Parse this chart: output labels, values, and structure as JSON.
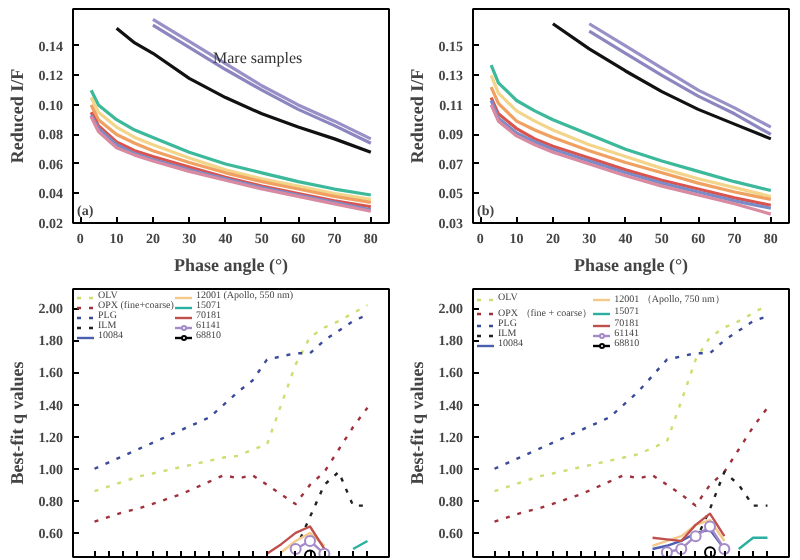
{
  "chart_data": [
    {
      "type": "line",
      "xlabel": "Phase angle (°)",
      "ylabel": "Reduced I/F",
      "x": [
        3,
        5,
        10,
        15,
        20,
        30,
        40,
        50,
        60,
        70,
        80
      ],
      "xlim": [
        -2,
        85
      ],
      "ylim": [
        0.02,
        0.165
      ],
      "xticks": [
        0,
        10,
        20,
        30,
        40,
        50,
        60,
        70,
        80
      ],
      "yticks": [
        {
          "value": 0.02,
          "label": "0.02"
        },
        {
          "value": 0.04,
          "label": "0.04"
        },
        {
          "value": 0.06,
          "label": "0.06"
        },
        {
          "value": 0.08,
          "label": "0.08"
        },
        {
          "value": 0.1,
          "label": "0.10"
        },
        {
          "value": 0.12,
          "label": "0.12"
        },
        {
          "value": 0.14,
          "label": "0.14"
        }
      ],
      "grid": false,
      "legend": false,
      "annotations": [
        "(a)",
        "Mare samples"
      ],
      "series": [
        {
          "color": "#9a90c8",
          "values": [
            null,
            null,
            null,
            null,
            0.158,
            0.143,
            0.128,
            0.113,
            0.1,
            0.089,
            0.077
          ]
        },
        {
          "color": "#8c86c0",
          "values": [
            null,
            null,
            null,
            null,
            0.154,
            0.139,
            0.124,
            0.11,
            0.097,
            0.086,
            0.074
          ]
        },
        {
          "color": "#111111",
          "values": [
            null,
            null,
            0.152,
            0.142,
            0.135,
            0.118,
            0.105,
            0.094,
            0.085,
            0.077,
            0.068
          ]
        },
        {
          "color": "#3cb89a",
          "values": [
            0.11,
            0.1,
            0.09,
            0.083,
            0.078,
            0.068,
            0.06,
            0.054,
            0.048,
            0.043,
            0.039
          ]
        },
        {
          "color": "#f2d58a",
          "values": [
            0.105,
            0.095,
            0.085,
            0.078,
            0.073,
            0.064,
            0.056,
            0.05,
            0.045,
            0.04,
            0.036
          ]
        },
        {
          "color": "#f0a060",
          "values": [
            0.1,
            0.09,
            0.08,
            0.074,
            0.069,
            0.061,
            0.054,
            0.048,
            0.043,
            0.038,
            0.034
          ]
        },
        {
          "color": "#d9534f",
          "values": [
            0.095,
            0.086,
            0.075,
            0.069,
            0.065,
            0.058,
            0.051,
            0.045,
            0.04,
            0.035,
            0.031
          ]
        },
        {
          "color": "#7a8cc8",
          "values": [
            0.093,
            0.084,
            0.073,
            0.067,
            0.063,
            0.056,
            0.05,
            0.044,
            0.039,
            0.034,
            0.029
          ]
        },
        {
          "color": "#d98aa0",
          "values": [
            0.092,
            0.082,
            0.071,
            0.066,
            0.062,
            0.055,
            0.049,
            0.043,
            0.038,
            0.033,
            0.028
          ]
        }
      ]
    },
    {
      "type": "line",
      "xlabel": "Phase angle (°)",
      "ylabel": "Reduced I/F",
      "x": [
        3,
        5,
        10,
        15,
        20,
        30,
        40,
        50,
        60,
        70,
        80
      ],
      "xlim": [
        -2,
        85
      ],
      "ylim": [
        0.03,
        0.175
      ],
      "xticks": [
        0,
        10,
        20,
        30,
        40,
        50,
        60,
        70,
        80
      ],
      "yticks": [
        0.03,
        0.05,
        0.07,
        0.09,
        0.11,
        0.13,
        0.15
      ],
      "grid": false,
      "legend": false,
      "annotations": [
        "(b)"
      ],
      "series": [
        {
          "color": "#9a90c8",
          "values": [
            null,
            null,
            null,
            null,
            null,
            0.165,
            0.15,
            0.135,
            0.12,
            0.108,
            0.095
          ]
        },
        {
          "color": "#8c86c0",
          "values": [
            null,
            null,
            null,
            null,
            null,
            0.16,
            0.145,
            0.13,
            0.116,
            0.104,
            0.09
          ]
        },
        {
          "color": "#111111",
          "values": [
            null,
            null,
            null,
            null,
            0.165,
            0.148,
            0.133,
            0.119,
            0.107,
            0.097,
            0.087
          ]
        },
        {
          "color": "#3cb89a",
          "values": [
            0.137,
            0.125,
            0.113,
            0.106,
            0.1,
            0.09,
            0.08,
            0.072,
            0.065,
            0.058,
            0.052
          ]
        },
        {
          "color": "#f2d58a",
          "values": [
            0.13,
            0.118,
            0.106,
            0.099,
            0.093,
            0.083,
            0.075,
            0.067,
            0.06,
            0.054,
            0.048
          ]
        },
        {
          "color": "#f0a060",
          "values": [
            0.122,
            0.111,
            0.099,
            0.093,
            0.088,
            0.079,
            0.071,
            0.064,
            0.057,
            0.051,
            0.046
          ]
        },
        {
          "color": "#d9534f",
          "values": [
            0.115,
            0.104,
            0.094,
            0.087,
            0.082,
            0.074,
            0.066,
            0.059,
            0.053,
            0.047,
            0.042
          ]
        },
        {
          "color": "#7a8cc8",
          "values": [
            0.113,
            0.101,
            0.091,
            0.085,
            0.08,
            0.072,
            0.064,
            0.057,
            0.051,
            0.045,
            0.04
          ]
        },
        {
          "color": "#d98aa0",
          "values": [
            0.11,
            0.099,
            0.089,
            0.083,
            0.078,
            0.07,
            0.062,
            0.055,
            0.049,
            0.043,
            0.036
          ]
        }
      ]
    },
    {
      "type": "line",
      "ylabel": "Best-fit q values",
      "categories": [
        null,
        null,
        null,
        null,
        null,
        null,
        null,
        null,
        null,
        null,
        null,
        null,
        null,
        null,
        null,
        null,
        null,
        null,
        null,
        null
      ],
      "ylim": [
        0.45,
        2.12
      ],
      "yticks": [
        {
          "value": 0.6,
          "label": "0.60"
        },
        {
          "value": 0.8,
          "label": "0.80"
        },
        {
          "value": 1.0,
          "label": "1.00"
        },
        {
          "value": 1.2,
          "label": "1.20"
        },
        {
          "value": 1.4,
          "label": "1.40"
        },
        {
          "value": 1.6,
          "label": "1.60"
        },
        {
          "value": 1.8,
          "label": "1.80"
        },
        {
          "value": 2.0,
          "label": "2.00"
        }
      ],
      "tick_labels": "y",
      "grid": false,
      "legend": "top left",
      "series": [
        {
          "name": "OLV",
          "color": "#cfdc70",
          "line_style": "dotted",
          "values": [
            0.86,
            0.89,
            0.92,
            0.95,
            0.97,
            0.99,
            1.01,
            1.03,
            1.05,
            1.07,
            1.08,
            1.12,
            1.15,
            1.4,
            1.65,
            1.82,
            1.88,
            1.92,
            1.97,
            2.02
          ]
        },
        {
          "name": "OPX (fine+coarse)",
          "color": "#a0303a",
          "line_style": "dotted",
          "values": [
            0.67,
            0.7,
            0.73,
            0.75,
            0.78,
            0.81,
            0.84,
            0.88,
            0.92,
            0.96,
            0.94,
            0.96,
            0.9,
            0.84,
            0.78,
            0.9,
            0.98,
            1.12,
            1.26,
            1.38
          ]
        },
        {
          "name": "PLG",
          "color": "#3a4a9a",
          "line_style": "dotted",
          "values": [
            1.0,
            1.04,
            1.08,
            1.12,
            1.16,
            1.2,
            1.24,
            1.28,
            1.32,
            1.4,
            1.48,
            1.55,
            1.68,
            1.7,
            1.72,
            1.72,
            1.8,
            1.86,
            1.92,
            1.96
          ]
        },
        {
          "name": "ILM",
          "color": "#222222",
          "line_style": "dotted",
          "values": [
            null,
            null,
            null,
            null,
            null,
            null,
            null,
            null,
            null,
            null,
            null,
            null,
            null,
            null,
            0.5,
            0.7,
            0.9,
            0.98,
            0.77,
            0.77
          ]
        },
        {
          "name": "10084",
          "color": "#4a5fb0",
          "line_style": "solid",
          "values": [
            null,
            null,
            null,
            null,
            null,
            null,
            null,
            null,
            null,
            null,
            null,
            null,
            null,
            null,
            null,
            null,
            null,
            null,
            null,
            null
          ]
        },
        {
          "name": "12001 (Apollo, 550 nm)",
          "color": "#f5c98a",
          "line_style": "solid",
          "values": [
            null,
            null,
            null,
            null,
            null,
            null,
            null,
            null,
            null,
            null,
            null,
            null,
            null,
            0.48,
            0.55,
            0.6,
            0.52,
            null,
            null,
            null
          ]
        },
        {
          "name": "15071",
          "color": "#2ab0a0",
          "line_style": "solid",
          "values": [
            null,
            null,
            null,
            null,
            null,
            null,
            null,
            null,
            null,
            null,
            null,
            null,
            null,
            null,
            null,
            null,
            null,
            null,
            0.5,
            0.55
          ]
        },
        {
          "name": "70181",
          "color": "#c0504d",
          "line_style": "solid",
          "values": [
            null,
            null,
            null,
            null,
            null,
            null,
            null,
            null,
            null,
            null,
            null,
            null,
            0.47,
            0.53,
            0.6,
            0.64,
            0.5,
            null,
            null,
            null
          ]
        },
        {
          "name": "61141",
          "color": "#a58ac8",
          "line_style": "solid",
          "marker": "circle",
          "values": [
            null,
            null,
            null,
            null,
            null,
            null,
            null,
            null,
            null,
            null,
            null,
            null,
            null,
            null,
            0.5,
            0.55,
            0.47,
            null,
            null,
            null
          ]
        },
        {
          "name": "68810",
          "color": "#000000",
          "line_style": "solid",
          "marker": "circle",
          "values": [
            null,
            null,
            null,
            null,
            null,
            null,
            null,
            null,
            null,
            null,
            null,
            null,
            null,
            null,
            null,
            0.46,
            null,
            null,
            null,
            null
          ]
        }
      ]
    },
    {
      "type": "line",
      "ylabel": "Best-fit q values",
      "categories": [
        null,
        null,
        null,
        null,
        null,
        null,
        null,
        null,
        null,
        null,
        null,
        null,
        null,
        null,
        null,
        null,
        null,
        null,
        null,
        null
      ],
      "ylim": [
        0.45,
        2.12
      ],
      "yticks": [
        {
          "value": 0.6,
          "label": "0.60"
        },
        {
          "value": 0.8,
          "label": "0.80"
        },
        {
          "value": 1.0,
          "label": "1.00"
        },
        {
          "value": 1.2,
          "label": "1.20"
        },
        {
          "value": 1.4,
          "label": "1.40"
        },
        {
          "value": 1.6,
          "label": "1.60"
        },
        {
          "value": 1.8,
          "label": "1.80"
        },
        {
          "value": 2.0,
          "label": "2.00"
        }
      ],
      "tick_labels": "y",
      "grid": false,
      "legend": "top left",
      "series": [
        {
          "name": "OLV",
          "color": "#cfdc70",
          "line_style": "dotted",
          "values": [
            0.86,
            0.89,
            0.92,
            0.95,
            0.97,
            0.99,
            1.01,
            1.03,
            1.05,
            1.07,
            1.09,
            1.13,
            1.17,
            1.42,
            1.68,
            1.82,
            1.88,
            1.92,
            1.97,
            2.02
          ]
        },
        {
          "name": "OPX （fine + coarse）",
          "color": "#a0303a",
          "line_style": "dotted",
          "values": [
            0.67,
            0.7,
            0.73,
            0.75,
            0.78,
            0.81,
            0.84,
            0.88,
            0.92,
            0.96,
            0.94,
            0.96,
            0.9,
            0.84,
            0.77,
            0.9,
            0.98,
            1.12,
            1.26,
            1.38
          ]
        },
        {
          "name": "PLG",
          "color": "#3a4a9a",
          "line_style": "dotted",
          "values": [
            1.0,
            1.04,
            1.08,
            1.12,
            1.16,
            1.2,
            1.24,
            1.28,
            1.32,
            1.4,
            1.48,
            1.58,
            1.68,
            1.7,
            1.72,
            1.72,
            1.8,
            1.86,
            1.92,
            1.95
          ]
        },
        {
          "name": "ILM",
          "color": "#222222",
          "line_style": "dotted",
          "values": [
            null,
            null,
            null,
            null,
            null,
            null,
            null,
            null,
            null,
            null,
            null,
            null,
            null,
            null,
            0.55,
            0.75,
            0.98,
            0.9,
            0.77,
            0.77
          ]
        },
        {
          "name": "10084",
          "color": "#4a5fb0",
          "line_style": "solid",
          "values": [
            null,
            null,
            null,
            null,
            null,
            null,
            null,
            null,
            null,
            null,
            null,
            0.5,
            0.52,
            0.55,
            0.6,
            0.62,
            0.5,
            null,
            null,
            null
          ]
        },
        {
          "name": "12001 （Apollo, 750 nm）",
          "color": "#f5c98a",
          "line_style": "solid",
          "values": [
            null,
            null,
            null,
            null,
            null,
            null,
            null,
            null,
            null,
            null,
            null,
            0.52,
            0.55,
            0.58,
            0.65,
            0.68,
            0.55,
            null,
            null,
            null
          ]
        },
        {
          "name": "15071",
          "color": "#2ab0a0",
          "line_style": "solid",
          "values": [
            null,
            null,
            null,
            null,
            null,
            null,
            null,
            null,
            null,
            null,
            null,
            null,
            null,
            null,
            null,
            null,
            null,
            0.5,
            0.57,
            0.57
          ]
        },
        {
          "name": "70181",
          "color": "#c0504d",
          "line_style": "solid",
          "values": [
            null,
            null,
            null,
            null,
            null,
            null,
            null,
            null,
            null,
            null,
            null,
            0.57,
            0.56,
            0.55,
            0.65,
            0.72,
            0.58,
            null,
            null,
            null
          ]
        },
        {
          "name": "61141",
          "color": "#a58ac8",
          "line_style": "solid",
          "marker": "circle",
          "values": [
            null,
            null,
            null,
            null,
            null,
            null,
            null,
            null,
            null,
            null,
            null,
            null,
            0.48,
            0.5,
            0.58,
            0.64,
            0.5,
            null,
            null,
            null
          ]
        },
        {
          "name": "68810",
          "color": "#000000",
          "line_style": "solid",
          "marker": "circle",
          "values": [
            null,
            null,
            null,
            null,
            null,
            null,
            null,
            null,
            null,
            null,
            null,
            null,
            null,
            null,
            null,
            0.48,
            null,
            null,
            null,
            null
          ]
        }
      ]
    }
  ]
}
